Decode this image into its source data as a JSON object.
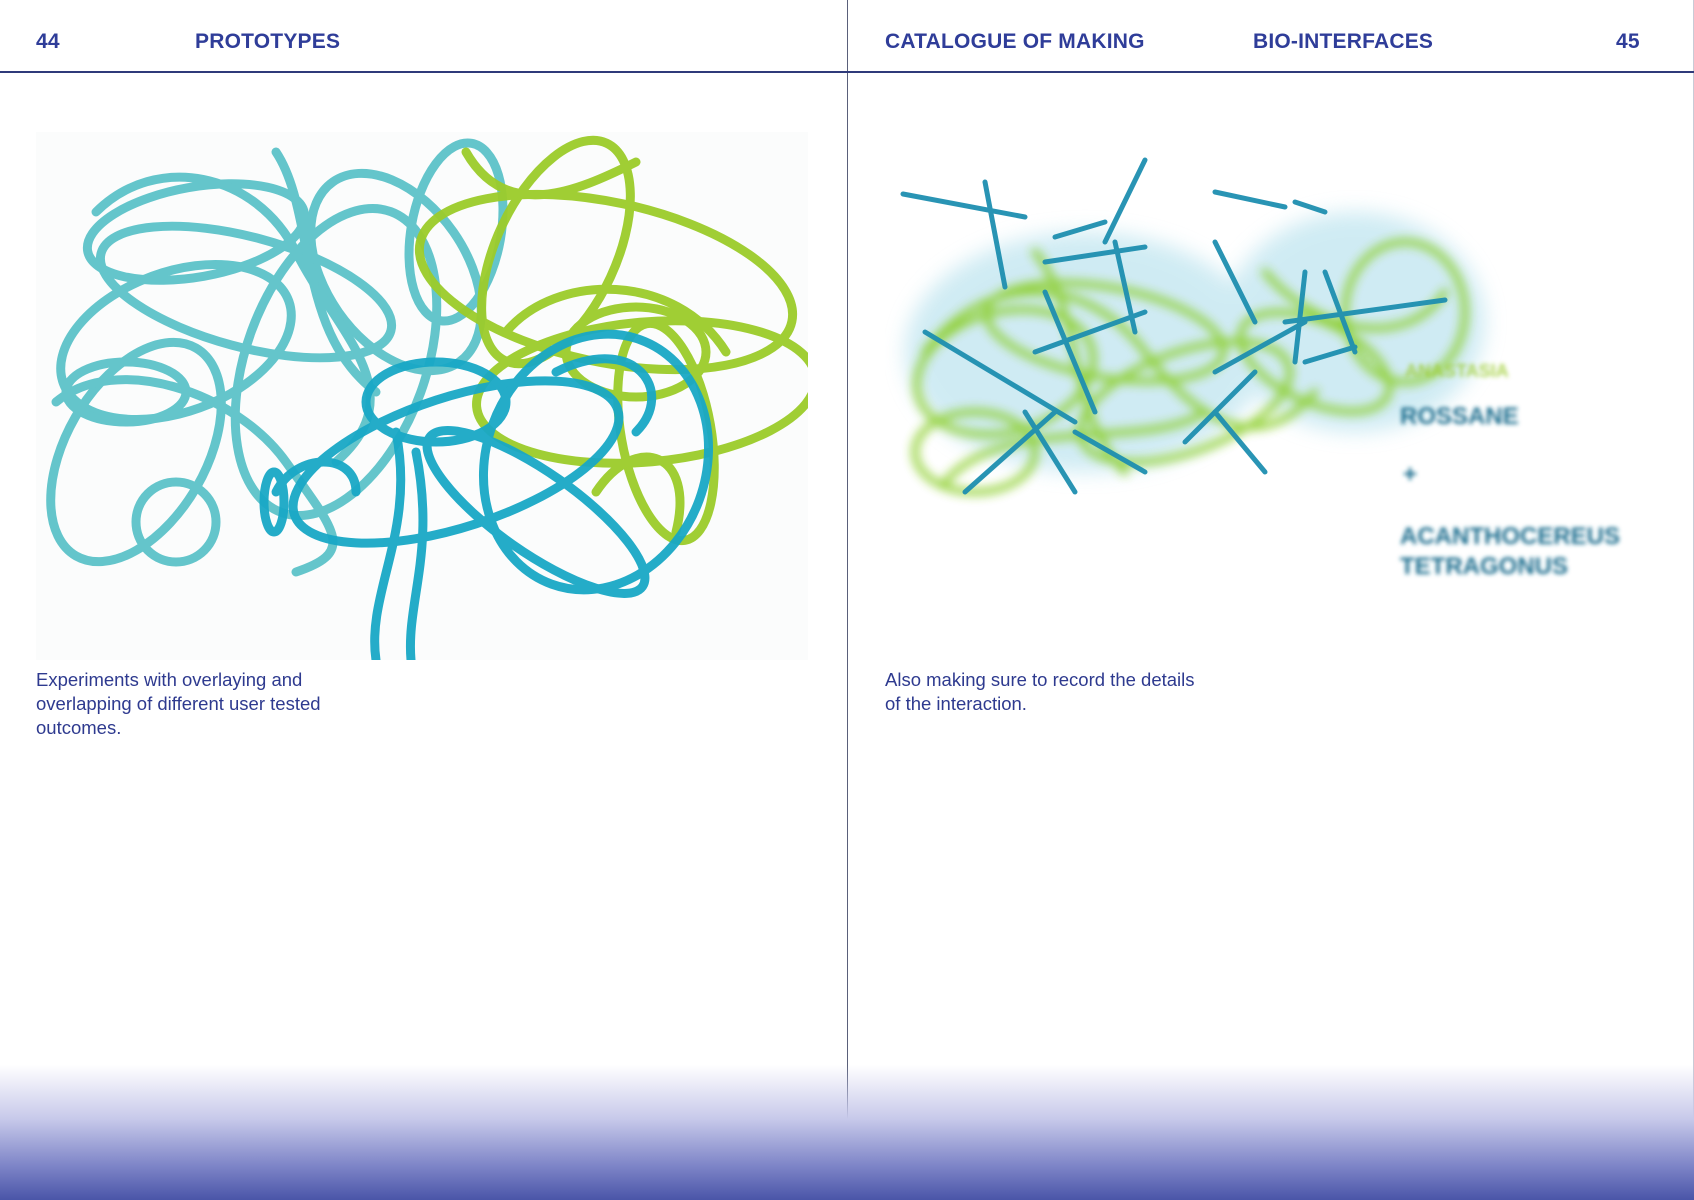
{
  "left_page": {
    "page_number": "44",
    "section": "PROTOTYPES",
    "caption": "Experiments with overlaying and overlapping of different user tested outcomes.",
    "image": {
      "subject": "scribble-drawing",
      "colors": [
        "#5cc3c9",
        "#19a8c6",
        "#9ccc2a"
      ]
    }
  },
  "right_page": {
    "running_title": "CATALOGUE OF MAKING",
    "section": "BIO-INTERFACES",
    "page_number": "45",
    "caption": "Also making sure to record the details of the interaction.",
    "image": {
      "subject": "blurred-scribble-drawing",
      "colors": [
        "#8ccf2b",
        "#a9dcea",
        "#1e8fb0"
      ],
      "overlay_lines": [
        "ANASTASIA",
        "ROSSANE",
        "+",
        "ACANTHOCEREUS",
        "TETRAGONUS"
      ]
    }
  },
  "accent_color": "#2f3d99"
}
